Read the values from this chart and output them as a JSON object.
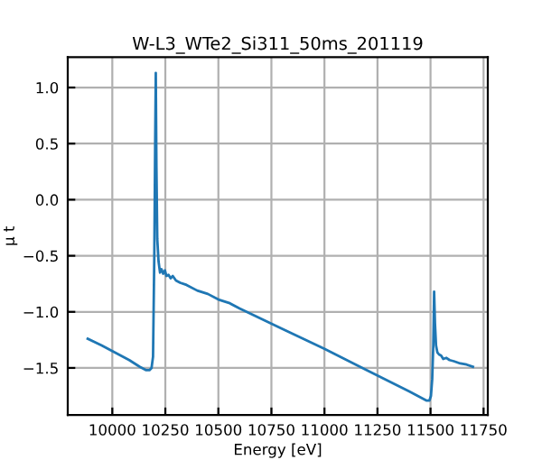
{
  "chart_data": {
    "type": "line",
    "title": "W-L3_WTe2_Si311_50ms_201119",
    "xlabel": "Energy [eV]",
    "ylabel": "μ t",
    "x": [
      9884,
      9950,
      10020,
      10080,
      10130,
      10160,
      10175,
      10185,
      10192,
      10198,
      10202,
      10205,
      10208,
      10212,
      10218,
      10225,
      10232,
      10240,
      10248,
      10255,
      10265,
      10275,
      10285,
      10300,
      10320,
      10350,
      10400,
      10450,
      10500,
      10550,
      10600,
      10800,
      11000,
      11200,
      11400,
      11480,
      11495,
      11502,
      11508,
      11513,
      11517,
      11521,
      11526,
      11532,
      11540,
      11550,
      11560,
      11575,
      11590,
      11610,
      11640,
      11670,
      11700
    ],
    "series": [
      {
        "color": "#1f77b4",
        "values": [
          -1.24,
          -1.3,
          -1.37,
          -1.43,
          -1.49,
          -1.52,
          -1.52,
          -1.5,
          -1.4,
          -0.5,
          0.5,
          1.13,
          0.3,
          -0.35,
          -0.55,
          -0.65,
          -0.62,
          -0.66,
          -0.63,
          -0.68,
          -0.67,
          -0.7,
          -0.68,
          -0.72,
          -0.74,
          -0.76,
          -0.81,
          -0.84,
          -0.89,
          -0.92,
          -0.97,
          -1.15,
          -1.33,
          -1.52,
          -1.71,
          -1.79,
          -1.79,
          -1.75,
          -1.6,
          -1.3,
          -0.82,
          -1.1,
          -1.3,
          -1.36,
          -1.38,
          -1.39,
          -1.42,
          -1.41,
          -1.43,
          -1.44,
          -1.46,
          -1.47,
          -1.49
        ]
      }
    ],
    "xlim": [
      9790,
      11770
    ],
    "ylim": [
      -1.92,
      1.27
    ],
    "xticks": [
      10000,
      10250,
      10500,
      10750,
      11000,
      11250,
      11500,
      11750
    ],
    "yticks": [
      {
        "value": -1.5,
        "label": "−1.5"
      },
      {
        "value": -1.0,
        "label": "−1.0"
      },
      {
        "value": -0.5,
        "label": "−0.5"
      },
      {
        "value": 0.0,
        "label": "0.0"
      },
      {
        "value": 0.5,
        "label": "0.5"
      },
      {
        "value": 1.0,
        "label": "1.0"
      }
    ],
    "grid": true
  }
}
